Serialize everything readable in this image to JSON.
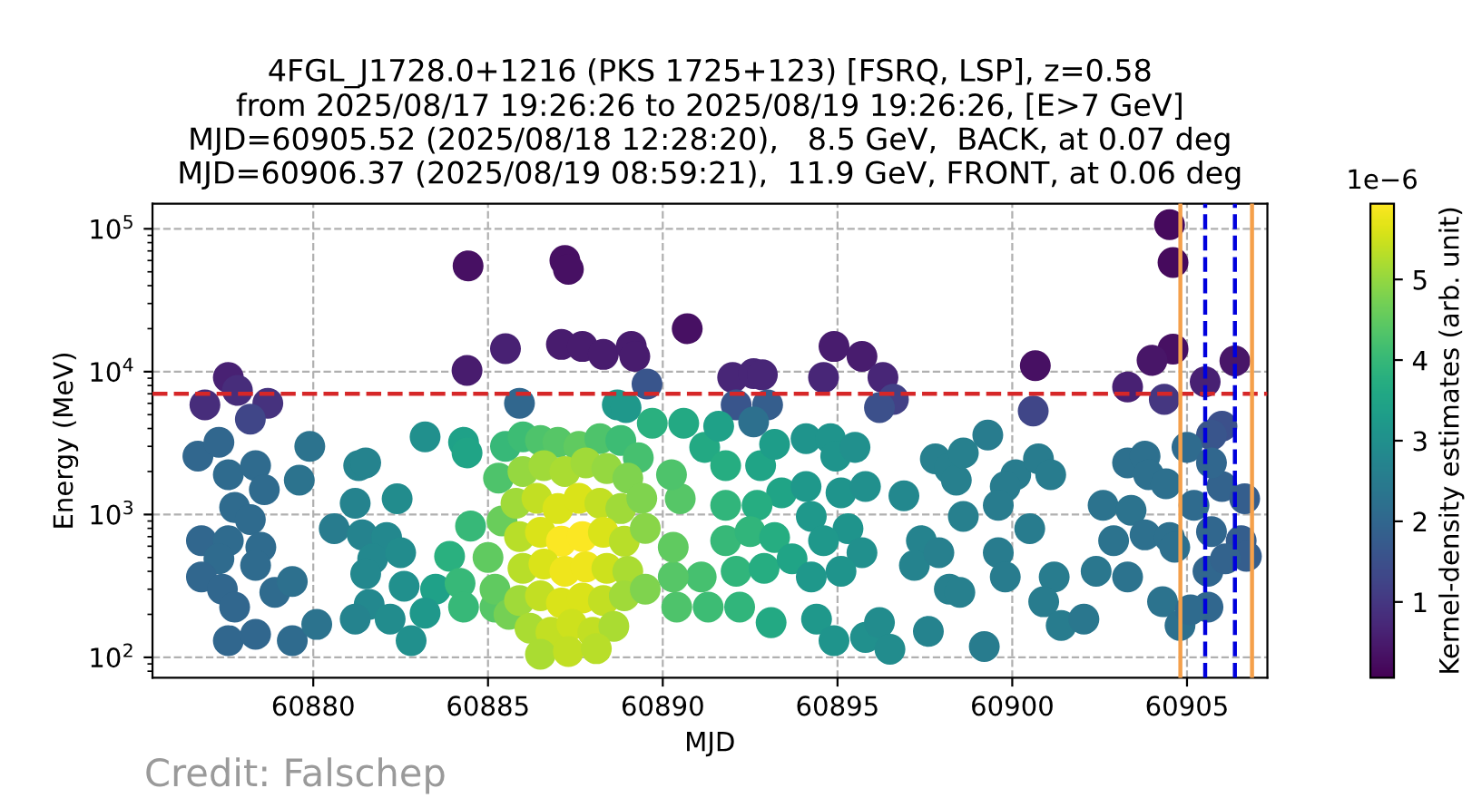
{
  "chart_data": {
    "type": "scatter",
    "title": "4FGL_J1728.0+1216 (PKS 1725+123) [FSRQ, LSP], z=0.58\nfrom 2025/08/17 19:26:26 to 2025/08/19 19:26:26, [E>7 GeV]\nMJD=60905.52 (2025/08/18 12:28:20),   8.5 GeV,  BACK, at 0.07 deg\nMJD=60906.37 (2025/08/19 08:59:21),  11.9 GeV, FRONT, at 0.06 deg",
    "xlabel": "MJD",
    "ylabel": "Energy (MeV)",
    "clabel": "Kernel-density estimates (arb. unit)",
    "annotations": [
      "1e−6",
      "Credit: Falschep"
    ],
    "x": [
      60884.43,
      60884.4,
      60885.5,
      60877.57,
      60877.83,
      60876.9,
      60878.7,
      60878.2,
      60887.2,
      60887.3,
      60887.1,
      60887.7,
      60888.3,
      60889.1,
      60889.2,
      60890.7,
      60892.0,
      60892.6,
      60892.85,
      60894.9,
      60895.7,
      60894.6,
      60896.3,
      60900.66,
      60904.5,
      60904.6,
      60904.6,
      60904.0,
      60903.3,
      60905.52,
      60906.37,
      60885.9,
      60889.55,
      60892.1,
      60893.0,
      60892.6,
      60896.6,
      60896.2,
      60888.7,
      60888.95,
      60900.6,
      60904.35,
      60906.0,
      60905.7,
      60876.7,
      60877.3,
      60877.57,
      60878.35,
      60878.6,
      60877.75,
      60878.2,
      60876.8,
      60877.57,
      60878.5,
      60877.3,
      60878.35,
      60876.8,
      60877.4,
      60877.75,
      60878.9,
      60879.4,
      60877.57,
      60878.35,
      60879.4,
      60880.1,
      60879.9,
      60879.6,
      60881.3,
      60881.5,
      60881.2,
      60882.4,
      60880.6,
      60881.4,
      60882.1,
      60881.7,
      60882.5,
      60881.5,
      60882.6,
      60883.5,
      60881.6,
      60881.2,
      60882.2,
      60883.2,
      60882.8,
      60883.2,
      60884.3,
      60884.4,
      60884.5,
      60883.9,
      60884.2,
      60884.3,
      60885.2,
      60889.7,
      60890.6,
      60891.2,
      60891.6,
      60891.8,
      60891.8,
      60892.8,
      60893.2,
      60893.4,
      60892.7,
      60891.8,
      60892.5,
      60893.2,
      60892.1,
      60892.9,
      60893.7,
      60891.1,
      60891.3,
      60892.2,
      60893.1,
      60890.4,
      60890.3,
      60890.3,
      60890.5,
      60890.25,
      60894.1,
      60894.8,
      60894.95,
      60895.5,
      60894.1,
      60895.1,
      60895.8,
      60896.9,
      60894.25,
      60895.3,
      60895.7,
      60894.6,
      60894.25,
      60895.1,
      60894.4,
      60894.9,
      60895.8,
      60896.2,
      60896.5,
      60897.6,
      60897.8,
      60898.2,
      60898.4,
      60897.4,
      60897.2,
      60897.9,
      60898.2,
      60899.3,
      60898.6,
      60900.1,
      60900.75,
      60901.1,
      60899.8,
      60898.6,
      60899.6,
      60900.5,
      60899.6,
      60899.8,
      60898.5,
      60901.2,
      60900.9,
      60901.4,
      60902.05,
      60899.2,
      60902.6,
      60903.4,
      60903.3,
      60903.8,
      60903.9,
      60904.4,
      60902.9,
      60903.8,
      60904.5,
      60902.4,
      60903.3,
      60904.65,
      60904.3,
      60904.8,
      60905.0,
      60905.2,
      60906.0,
      60906.65,
      60905.7,
      60906.55,
      60906.7,
      60905.6,
      60906.1,
      60905.6,
      60905.1,
      60905.7,
      60885.5,
      60886.0,
      60886.5,
      60887.0,
      60887.6,
      60888.2,
      60888.8,
      60889.3,
      60885.3,
      60885.4,
      60885.0,
      60885.2,
      60885.6,
      60886.0,
      60886.6,
      60887.2,
      60887.8,
      60888.4,
      60889.0,
      60885.8,
      60886.4,
      60887.0,
      60887.6,
      60888.2,
      60888.8,
      60889.4,
      60885.9,
      60886.5,
      60887.1,
      60887.7,
      60888.3,
      60888.9,
      60889.5,
      60886.0,
      60886.6,
      60887.2,
      60887.8,
      60888.4,
      60889.0,
      60885.9,
      60886.5,
      60887.1,
      60887.7,
      60888.3,
      60888.9,
      60889.5,
      60886.2,
      60886.8,
      60887.4,
      60888.0,
      60888.6,
      60886.5,
      60887.3,
      60888.1
    ],
    "values": [
      55000,
      10200,
      14500,
      9100,
      7400,
      5850,
      6000,
      4650,
      60000,
      52000,
      15500,
      15000,
      13200,
      15000,
      12800,
      20000,
      9100,
      9700,
      9500,
      15000,
      12800,
      9100,
      9100,
      11000,
      107000,
      58000,
      14400,
      12000,
      7800,
      8500,
      11900,
      6000,
      8200,
      5850,
      5850,
      4450,
      6400,
      5600,
      5850,
      5600,
      5300,
      6400,
      4150,
      3600,
      2560,
      3200,
      1900,
      2200,
      1490,
      1120,
      920,
      655,
      655,
      590,
      490,
      440,
      365,
      300,
      225,
      285,
      340,
      131,
      145,
      131,
      170,
      3000,
      1740,
      2200,
      2300,
      1200,
      1290,
      795,
      720,
      690,
      490,
      540,
      385,
      315,
      300,
      235,
      185,
      185,
      204,
      131,
      3500,
      3200,
      2700,
      830,
      510,
      330,
      225,
      225,
      4350,
      4350,
      2950,
      4150,
      2200,
      1160,
      2200,
      3100,
      1420,
      1160,
      655,
      760,
      690,
      400,
      420,
      490,
      365,
      225,
      225,
      175,
      225,
      365,
      590,
      1290,
      1900,
      3400,
      3400,
      2560,
      2950,
      1570,
      1420,
      1570,
      1350,
      970,
      795,
      540,
      655,
      365,
      400,
      185,
      131,
      138,
      175,
      114,
      152,
      2450,
      2100,
      1740,
      655,
      440,
      540,
      300,
      3600,
      2700,
      1900,
      2450,
      1900,
      1570,
      970,
      1160,
      795,
      540,
      365,
      285,
      365,
      245,
      167,
      185,
      119,
      1160,
      1070,
      2300,
      2560,
      1900,
      1640,
      655,
      720,
      690,
      400,
      365,
      590,
      245,
      167,
      2950,
      1160,
      1570,
      1290,
      760,
      655,
      510,
      400,
      490,
      225,
      215,
      2300,
      3000,
      3500,
      3300,
      3200,
      3000,
      3400,
      3300,
      2500,
      1800,
      900,
      500,
      300,
      200,
      2000,
      2200,
      2000,
      2300,
      2100,
      1800,
      1200,
      1300,
      1100,
      1300,
      1200,
      1100,
      1300,
      700,
      750,
      650,
      700,
      750,
      650,
      800,
      420,
      450,
      400,
      430,
      420,
      400,
      250,
      270,
      240,
      260,
      250,
      270,
      300,
      160,
      150,
      170,
      150,
      165,
      105,
      110,
      115
    ],
    "cvalues": [
      0.3,
      0.5,
      0.6,
      0.6,
      0.8,
      0.8,
      0.9,
      1.3,
      0.3,
      0.3,
      0.5,
      0.5,
      0.5,
      0.5,
      0.5,
      0.3,
      0.7,
      0.7,
      0.7,
      0.5,
      0.5,
      0.7,
      0.7,
      0.3,
      0.2,
      0.2,
      0.3,
      0.4,
      0.6,
      0.6,
      0.4,
      2.0,
      1.6,
      1.6,
      1.8,
      2.2,
      1.2,
      1.5,
      3.2,
      3.2,
      1.3,
      1.0,
      1.5,
      1.6,
      2.0,
      2.0,
      2.1,
      2.1,
      2.1,
      2.1,
      2.1,
      2.0,
      2.1,
      2.1,
      2.1,
      2.1,
      2.0,
      2.0,
      2.0,
      2.1,
      2.2,
      2.0,
      2.0,
      2.1,
      2.3,
      2.3,
      2.3,
      2.7,
      2.7,
      2.7,
      2.9,
      2.5,
      2.7,
      2.8,
      2.8,
      2.9,
      2.8,
      3.0,
      3.4,
      2.8,
      2.7,
      2.9,
      3.2,
      3.0,
      3.0,
      3.4,
      3.5,
      4.0,
      3.8,
      4.0,
      4.0,
      4.4,
      3.8,
      3.6,
      3.6,
      3.4,
      3.7,
      3.9,
      3.5,
      3.3,
      3.5,
      3.7,
      4.0,
      3.9,
      3.7,
      3.9,
      3.7,
      3.5,
      4.2,
      4.1,
      3.9,
      3.6,
      4.3,
      4.4,
      4.5,
      4.4,
      4.3,
      3.1,
      3.1,
      3.1,
      3.0,
      3.2,
      3.1,
      3.0,
      2.8,
      3.2,
      3.1,
      3.0,
      3.2,
      3.2,
      3.1,
      3.2,
      3.1,
      3.0,
      2.9,
      2.9,
      2.7,
      2.6,
      2.6,
      2.6,
      2.7,
      2.7,
      2.6,
      2.6,
      2.5,
      2.6,
      2.5,
      2.5,
      2.5,
      2.5,
      2.6,
      2.5,
      2.5,
      2.5,
      2.5,
      2.6,
      2.5,
      2.5,
      2.5,
      2.4,
      2.5,
      2.3,
      2.3,
      2.2,
      2.2,
      2.2,
      2.2,
      2.3,
      2.2,
      2.2,
      2.4,
      2.3,
      2.2,
      2.3,
      2.2,
      2.1,
      2.1,
      1.9,
      1.8,
      2.0,
      1.8,
      1.8,
      2.0,
      1.9,
      2.0,
      2.1,
      2.0,
      4.0,
      4.1,
      4.3,
      4.4,
      4.5,
      4.3,
      4.1,
      4.2,
      4.3,
      4.6,
      4.5,
      4.5,
      4.7,
      5.0,
      5.1,
      5.2,
      5.1,
      5.0,
      4.8,
      5.1,
      5.4,
      5.6,
      5.6,
      5.4,
      5.1,
      4.8,
      5.3,
      5.6,
      5.9,
      5.9,
      5.6,
      5.3,
      4.9,
      5.3,
      5.6,
      5.8,
      5.8,
      5.5,
      5.2,
      5.1,
      5.4,
      5.6,
      5.6,
      5.4,
      5.1,
      4.8,
      5.2,
      5.4,
      5.5,
      5.4,
      5.2,
      5.2,
      5.4,
      5.3
    ],
    "clim": [
      0.06,
      5.94
    ],
    "cticks": [
      1,
      2,
      3,
      4,
      5
    ],
    "log": "y",
    "xlim": [
      60875.4,
      60907.3
    ],
    "ylim": [
      72,
      150000
    ],
    "xticks": [
      60880,
      60885,
      60890,
      60895,
      60900,
      60905
    ],
    "yticks": [
      {
        "value": 100,
        "label": "10$^{2}$"
      },
      {
        "value": 1000,
        "label": "10$^{3}$"
      },
      {
        "value": 10000,
        "label": "10$^{4}$"
      },
      {
        "value": 100000,
        "label": "10$^{5}$"
      }
    ],
    "ref_lines": [
      {
        "axis": "y",
        "value": 7000,
        "color": "#d62728",
        "line_style": "dashed"
      },
      {
        "axis": "x",
        "value": 60904.81,
        "color": "#f5a04a",
        "line_style": "solid"
      },
      {
        "axis": "x",
        "value": 60906.86,
        "color": "#f5a04a",
        "line_style": "solid"
      },
      {
        "axis": "x",
        "value": 60905.52,
        "color": "#0000dd",
        "line_style": "dashed"
      },
      {
        "axis": "x",
        "value": 60906.37,
        "color": "#0000dd",
        "line_style": "dashed"
      }
    ],
    "grid": true,
    "marker": "circle"
  }
}
